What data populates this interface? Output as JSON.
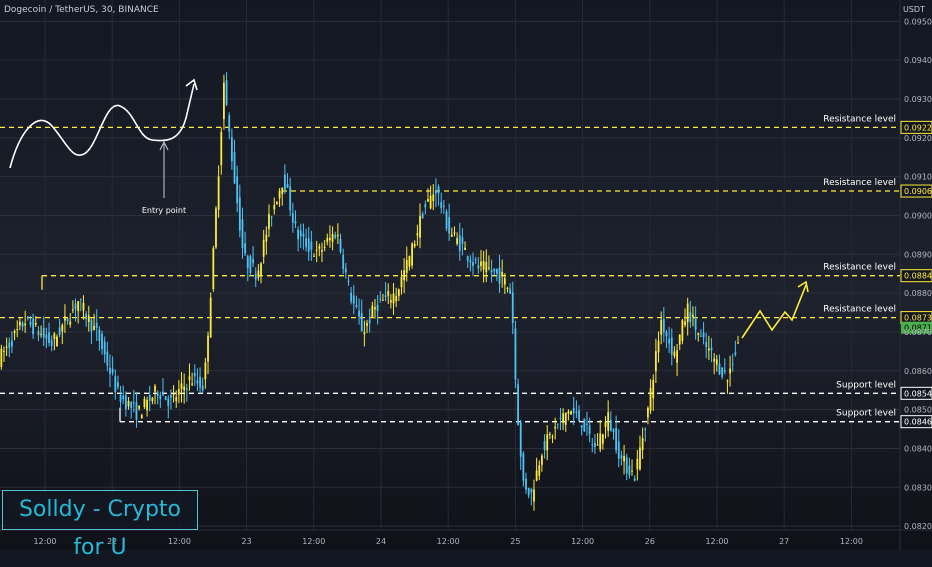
{
  "header": {
    "title": "Dogecoin / TetherUS, 30, BINANCE",
    "currency": "USDT"
  },
  "watermark": "Solldy - Crypto for U",
  "chart_data": {
    "type": "candlestick",
    "ylim": [
      0.0819,
      0.09555
    ],
    "y_ticks": [
      "0.09500",
      "0.09400",
      "0.09300",
      "0.09200",
      "0.09100",
      "0.09000",
      "0.08900",
      "0.08800",
      "0.08700",
      "0.08600",
      "0.08500",
      "0.08400",
      "0.08300",
      "0.08200"
    ],
    "x_ticks": [
      "12:00",
      "22",
      "12:00",
      "23",
      "12:00",
      "24",
      "12:00",
      "25",
      "12:00",
      "26",
      "12:00",
      "27",
      "12:00"
    ],
    "price_path": [
      [
        0.0,
        0.0863
      ],
      [
        2.0,
        0.0873
      ],
      [
        4.0,
        0.0867
      ],
      [
        6.0,
        0.0878
      ],
      [
        7.5,
        0.0869
      ],
      [
        9.0,
        0.0854
      ],
      [
        10.5,
        0.0849
      ],
      [
        12.0,
        0.0855
      ],
      [
        13.0,
        0.0852
      ],
      [
        14.5,
        0.0858
      ],
      [
        15.5,
        0.0856
      ],
      [
        16.2,
        0.089
      ],
      [
        17.0,
        0.0934
      ],
      [
        17.5,
        0.0918
      ],
      [
        18.5,
        0.0889
      ],
      [
        19.5,
        0.0885
      ],
      [
        20.5,
        0.09
      ],
      [
        21.5,
        0.091
      ],
      [
        22.5,
        0.0895
      ],
      [
        24.0,
        0.089
      ],
      [
        25.5,
        0.0896
      ],
      [
        26.5,
        0.088
      ],
      [
        27.5,
        0.087
      ],
      [
        28.5,
        0.0877
      ],
      [
        30.0,
        0.088
      ],
      [
        31.0,
        0.0889
      ],
      [
        32.0,
        0.0901
      ],
      [
        33.0,
        0.0907
      ],
      [
        34.0,
        0.0896
      ],
      [
        35.0,
        0.0892
      ],
      [
        36.0,
        0.0887
      ],
      [
        37.0,
        0.0886
      ],
      [
        38.0,
        0.0884
      ],
      [
        38.7,
        0.088
      ],
      [
        39.0,
        0.0858
      ],
      [
        39.5,
        0.0832
      ],
      [
        40.2,
        0.0828
      ],
      [
        41.0,
        0.084
      ],
      [
        42.0,
        0.0845
      ],
      [
        43.0,
        0.085
      ],
      [
        44.0,
        0.0847
      ],
      [
        45.0,
        0.084
      ],
      [
        46.0,
        0.0848
      ],
      [
        47.0,
        0.0837
      ],
      [
        48.0,
        0.0833
      ],
      [
        49.0,
        0.085
      ],
      [
        50.0,
        0.0873
      ],
      [
        51.0,
        0.0864
      ],
      [
        52.0,
        0.0876
      ],
      [
        53.0,
        0.0868
      ],
      [
        54.0,
        0.0863
      ],
      [
        55.0,
        0.0858
      ],
      [
        56.0,
        0.087
      ]
    ],
    "levels": [
      {
        "label": "Resistance level",
        "price": "0.09227",
        "value": 0.09227,
        "color": "#ffeb3b"
      },
      {
        "label": "Resistance level",
        "price": "0.09063",
        "value": 0.09063,
        "color": "#ffeb3b"
      },
      {
        "label": "Resistance level",
        "price": "0.08845",
        "value": 0.08845,
        "color": "#ffeb3b"
      },
      {
        "label": "Resistance level",
        "price": "0.08737",
        "value": 0.08737,
        "color": "#ffeb3b"
      },
      {
        "label": "Support level",
        "price": "0.08542",
        "value": 0.08542,
        "color": "#ffffff"
      },
      {
        "label": "Support level",
        "price": "0.08469",
        "value": 0.08469,
        "color": "#ffffff"
      }
    ],
    "current_price": {
      "price": "0.08711",
      "value": 0.08711,
      "color": "#4caf50"
    },
    "annotations": {
      "entry_label": "Entry point"
    },
    "up_color": "#ffeb3b",
    "down_color": "#4fc3f7"
  }
}
